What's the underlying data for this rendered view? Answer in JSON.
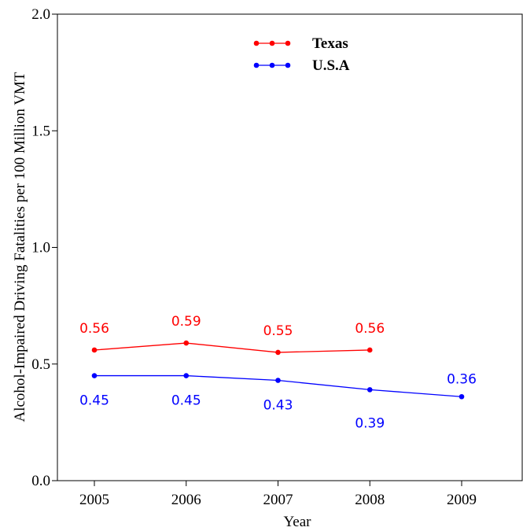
{
  "chart_data": {
    "type": "line",
    "x": [
      2005,
      2006,
      2007,
      2008,
      2009
    ],
    "x_tick_labels": [
      "2005",
      "2006",
      "2007",
      "2008",
      "2009"
    ],
    "xlabel": "Year",
    "ylabel": "Alcohol-Impaired Driving Fatalities per 100 Million VMT",
    "ylim": [
      0.0,
      2.0
    ],
    "y_ticks": [
      0.0,
      0.5,
      1.0,
      1.5,
      2.0
    ],
    "y_tick_labels": [
      "0.0",
      "0.5",
      "1.0",
      "1.5",
      "2.0"
    ],
    "legend_position": "top-center",
    "grid": false,
    "series": [
      {
        "name": "Texas",
        "color": "#ff0000",
        "x": [
          2005,
          2006,
          2007,
          2008
        ],
        "values": [
          0.56,
          0.59,
          0.55,
          0.56
        ],
        "labels": [
          "0.56",
          "0.59",
          "0.55",
          "0.56"
        ],
        "label_position": "above"
      },
      {
        "name": "U.S.A",
        "color": "#0000ff",
        "x": [
          2005,
          2006,
          2007,
          2008,
          2009
        ],
        "values": [
          0.45,
          0.45,
          0.43,
          0.39,
          0.36
        ],
        "labels": [
          "0.45",
          "0.45",
          "0.43",
          "0.39",
          "0.36"
        ],
        "label_position": "mixed"
      }
    ]
  }
}
